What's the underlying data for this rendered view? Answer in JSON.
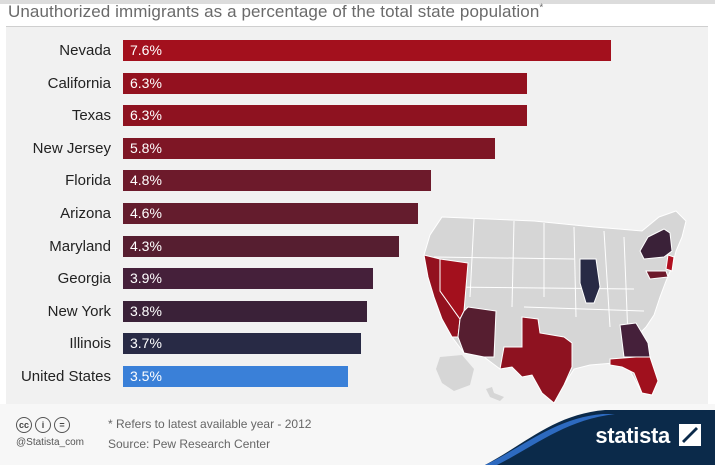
{
  "chart_data": {
    "type": "bar",
    "title": "Unauthorized immigrants as a percentage of the total state population",
    "title_note_marker": "*",
    "categories": [
      "Nevada",
      "California",
      "Texas",
      "New Jersey",
      "Florida",
      "Arizona",
      "Maryland",
      "Georgia",
      "New York",
      "Illinois",
      "United States"
    ],
    "values": [
      7.6,
      6.3,
      6.3,
      5.8,
      4.8,
      4.6,
      4.3,
      3.9,
      3.8,
      3.7,
      3.5
    ],
    "value_labels": [
      "7.6%",
      "6.3%",
      "6.3%",
      "5.8%",
      "4.8%",
      "4.6%",
      "4.3%",
      "3.9%",
      "3.8%",
      "3.7%",
      "3.5%"
    ],
    "colors": [
      "#a3101d",
      "#93111f",
      "#8e1220",
      "#7e1625",
      "#6d1a2b",
      "#641c2d",
      "#561e30",
      "#45203a",
      "#3a2138",
      "#282a45",
      "#3a80d8"
    ],
    "xlabel": "",
    "ylabel": "",
    "xlim": [
      0,
      8
    ],
    "grid": false,
    "legend": "none"
  },
  "map": {
    "highlight_colors": {
      "nevada": "#a3101d",
      "california": "#93111f",
      "texas": "#8e1220",
      "new_jersey": "#b01020",
      "florida": "#a0101d",
      "arizona": "#561e30",
      "maryland": "#6d1a2b",
      "georgia": "#45203a",
      "new_york": "#3a2138",
      "illinois": "#282a45",
      "default_state": "#d6d6d6",
      "border": "#ffffff"
    }
  },
  "footer": {
    "cc_icons": [
      "cc",
      "i",
      "="
    ],
    "credit": "@Statista_com",
    "note": "* Refers to latest available year - 2012",
    "source": "Source: Pew Research Center",
    "brand": "statista",
    "brand_color": "#0b2a4a",
    "wave_color": "#2d6ac0"
  }
}
